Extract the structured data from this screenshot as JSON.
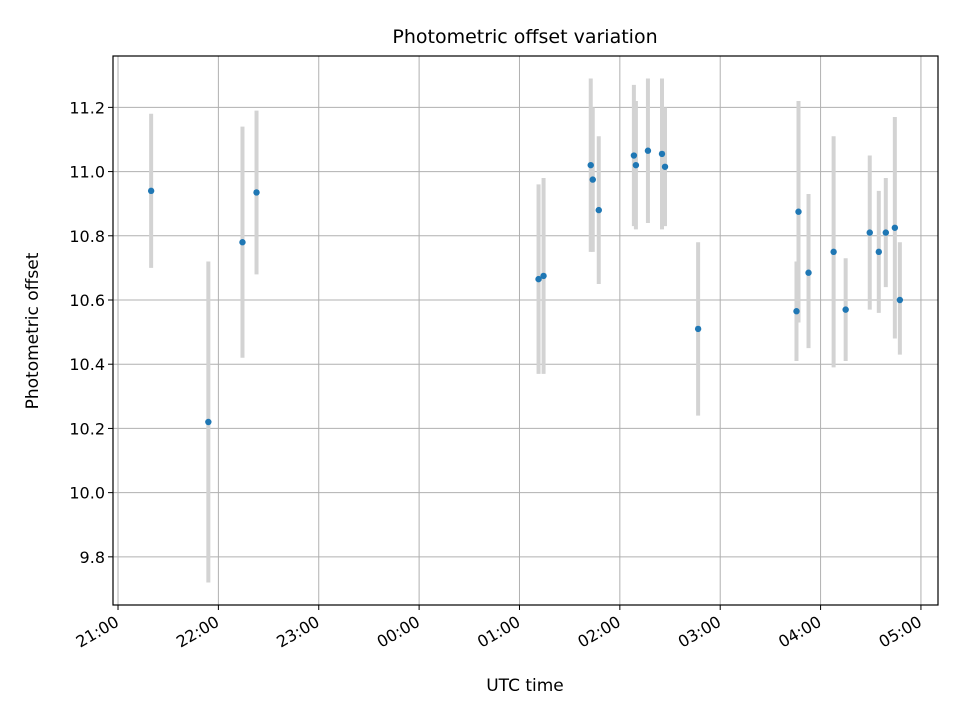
{
  "chart_data": {
    "type": "scatter",
    "title": "Photometric offset variation",
    "xlabel": "UTC time",
    "ylabel": "Photometric offset",
    "grid": true,
    "x_unit": "hours after 21:00 UTC",
    "xlim": [
      -0.05,
      8.17
    ],
    "ylim": [
      9.65,
      11.36
    ],
    "x_ticks": [
      0,
      1,
      2,
      3,
      4,
      5,
      6,
      7,
      8
    ],
    "x_tick_labels": [
      "21:00",
      "22:00",
      "23:00",
      "00:00",
      "01:00",
      "02:00",
      "03:00",
      "04:00",
      "05:00"
    ],
    "y_ticks": [
      9.8,
      10.0,
      10.2,
      10.4,
      10.6,
      10.8,
      11.0,
      11.2
    ],
    "y_tick_labels": [
      "9.8",
      "10.0",
      "10.2",
      "10.4",
      "10.6",
      "10.8",
      "11.0",
      "11.2"
    ],
    "colors": {
      "point": "#1f77b4",
      "errorbar": "#d3d3d3",
      "grid": "#b0b0b0",
      "axes": "#000000"
    },
    "series": [
      {
        "name": "offset",
        "points": [
          {
            "x": 0.33,
            "y": 10.94,
            "err_low": 10.7,
            "err_high": 11.18
          },
          {
            "x": 0.9,
            "y": 10.22,
            "err_low": 9.72,
            "err_high": 10.72
          },
          {
            "x": 1.24,
            "y": 10.78,
            "err_low": 10.42,
            "err_high": 11.14
          },
          {
            "x": 1.38,
            "y": 10.935,
            "err_low": 10.68,
            "err_high": 11.19
          },
          {
            "x": 4.19,
            "y": 10.665,
            "err_low": 10.37,
            "err_high": 10.96
          },
          {
            "x": 4.24,
            "y": 10.675,
            "err_low": 10.37,
            "err_high": 10.98
          },
          {
            "x": 4.71,
            "y": 11.02,
            "err_low": 10.75,
            "err_high": 11.29
          },
          {
            "x": 4.73,
            "y": 10.975,
            "err_low": 10.75,
            "err_high": 11.2
          },
          {
            "x": 4.79,
            "y": 10.88,
            "err_low": 10.65,
            "err_high": 11.11
          },
          {
            "x": 5.14,
            "y": 11.05,
            "err_low": 10.83,
            "err_high": 11.27
          },
          {
            "x": 5.16,
            "y": 11.02,
            "err_low": 10.82,
            "err_high": 11.22
          },
          {
            "x": 5.28,
            "y": 11.065,
            "err_low": 10.84,
            "err_high": 11.29
          },
          {
            "x": 5.42,
            "y": 11.055,
            "err_low": 10.82,
            "err_high": 11.29
          },
          {
            "x": 5.45,
            "y": 11.015,
            "err_low": 10.83,
            "err_high": 11.2
          },
          {
            "x": 5.78,
            "y": 10.51,
            "err_low": 10.24,
            "err_high": 10.78
          },
          {
            "x": 6.76,
            "y": 10.565,
            "err_low": 10.41,
            "err_high": 10.72
          },
          {
            "x": 6.78,
            "y": 10.875,
            "err_low": 10.53,
            "err_high": 11.22
          },
          {
            "x": 6.88,
            "y": 10.685,
            "err_low": 10.45,
            "err_high": 10.93
          },
          {
            "x": 7.13,
            "y": 10.75,
            "err_low": 10.39,
            "err_high": 11.11
          },
          {
            "x": 7.25,
            "y": 10.57,
            "err_low": 10.41,
            "err_high": 10.73
          },
          {
            "x": 7.49,
            "y": 10.81,
            "err_low": 10.57,
            "err_high": 11.05
          },
          {
            "x": 7.58,
            "y": 10.75,
            "err_low": 10.56,
            "err_high": 10.94
          },
          {
            "x": 7.65,
            "y": 10.81,
            "err_low": 10.64,
            "err_high": 10.98
          },
          {
            "x": 7.74,
            "y": 10.825,
            "err_low": 10.48,
            "err_high": 11.17
          },
          {
            "x": 7.79,
            "y": 10.6,
            "err_low": 10.43,
            "err_high": 10.78
          }
        ]
      }
    ]
  }
}
